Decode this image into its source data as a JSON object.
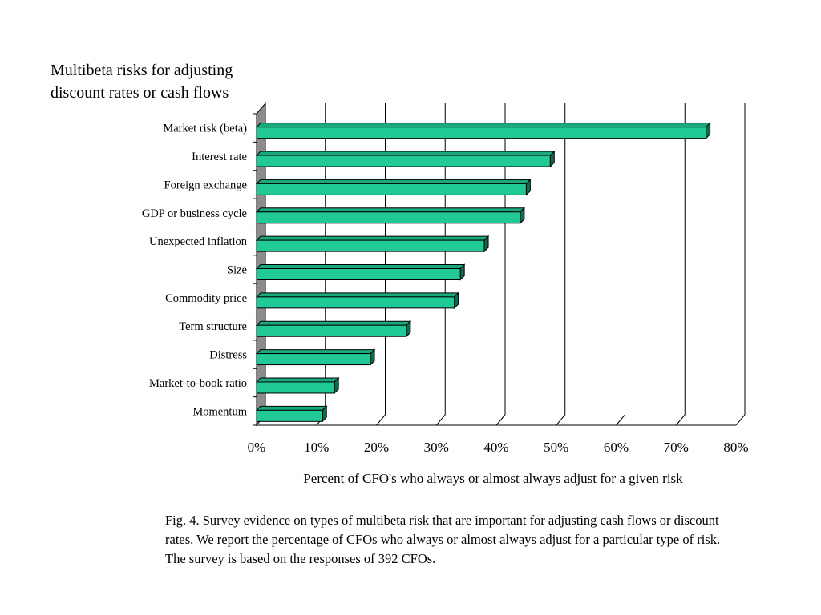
{
  "title_lines": [
    "Multibeta risks for adjusting",
    "discount rates or cash flows"
  ],
  "chart_data": {
    "type": "bar",
    "orientation": "horizontal",
    "style": "3d",
    "categories": [
      "Market risk (beta)",
      "Interest rate",
      "Foreign exchange",
      "GDP or business cycle",
      "Unexpected inflation",
      "Size",
      "Commodity price",
      "Term structure",
      "Distress",
      "Market-to-book ratio",
      "Momentum"
    ],
    "values": [
      75,
      49,
      45,
      44,
      38,
      34,
      33,
      25,
      19,
      13,
      11
    ],
    "xlim": [
      0,
      80
    ],
    "xticks": [
      0,
      10,
      20,
      30,
      40,
      50,
      60,
      70,
      80
    ],
    "xtick_labels": [
      "0%",
      "10%",
      "20%",
      "30%",
      "40%",
      "50%",
      "60%",
      "70%",
      "80%"
    ],
    "xlabel": "Percent of CFO's who always or almost always adjust for a given risk",
    "ylabel": "",
    "grid": true,
    "bar_color": "#20c996",
    "bar_top_color": "#1aa97c",
    "bar_side_color": "#0e6b4e",
    "wall_color": "#8c8c8c"
  },
  "caption": "Fig. 4.  Survey evidence on types of multibeta risk that are important for adjusting cash flows or discount rates. We report the percentage of CFOs who always or almost always adjust for a particular type of risk. The survey is based on the responses of 392 CFOs."
}
